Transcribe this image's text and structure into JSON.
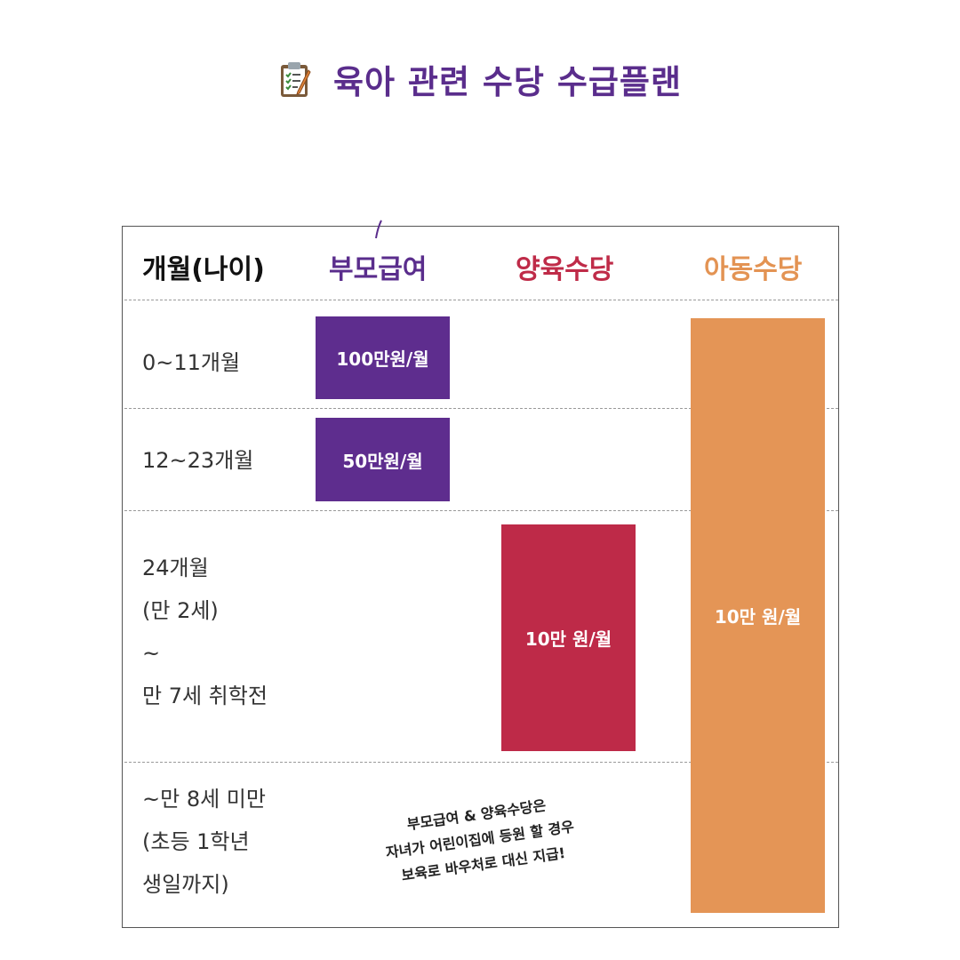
{
  "title": "육아 관련 수당 수급플랜",
  "icon": "clipboard-checklist-icon",
  "colors": {
    "title": "#5a2d8c",
    "parent_allowance": "#5e2d8e",
    "home_care_allowance": "#be2a48",
    "child_allowance": "#e49556"
  },
  "headers": {
    "age": "개월(나이)",
    "parent": "부모급여",
    "home": "양육수당",
    "child": "아동수당"
  },
  "rows": [
    {
      "label": "0~11개월"
    },
    {
      "label": "12~23개월"
    },
    {
      "label": "24개월\n(만 2세)\n~\n만 7세 취학전"
    },
    {
      "label": "~만 8세 미만\n(초등 1학년\n생일까지)"
    }
  ],
  "bars": {
    "parent_0_11": "100만원/월",
    "parent_12_23": "50만원/월",
    "home": "10만 원/월",
    "child": "10만 원/월"
  },
  "note": [
    "부모급여 & 양육수당은",
    "자녀가 어린이집에 등원 할 경우",
    "보육로 바우처로 대신 지급!"
  ]
}
